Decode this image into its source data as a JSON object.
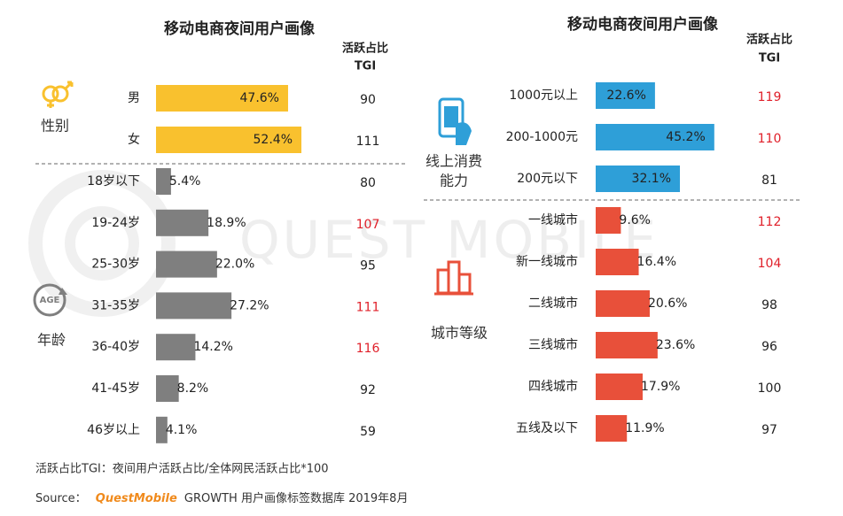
{
  "chart_data": [
    {
      "type": "bar",
      "orientation": "horizontal",
      "title": "移动电商夜间用户画像",
      "tgi_header": [
        "活跃占比",
        "TGI"
      ],
      "groups": [
        {
          "label": [
            "性别"
          ],
          "color": "#f9c12e",
          "categories": [
            "男",
            "女"
          ],
          "values": [
            47.6,
            52.4
          ],
          "value_labels": [
            "47.6%",
            "52.4%"
          ],
          "tgi": [
            90,
            111
          ],
          "tgi_colors": [
            "#222222",
            "#222222"
          ]
        },
        {
          "label": [
            "年龄"
          ],
          "color": "#7f7f7f",
          "categories": [
            "18岁以下",
            "19-24岁",
            "25-30岁",
            "31-35岁",
            "36-40岁",
            "41-45岁",
            "46岁以上"
          ],
          "values": [
            5.4,
            18.9,
            22.0,
            27.2,
            14.2,
            8.2,
            4.1
          ],
          "value_labels": [
            "5.4%",
            "18.9%",
            "22.0%",
            "27.2%",
            "14.2%",
            "8.2%",
            "4.1%"
          ],
          "tgi": [
            80,
            107,
            95,
            111,
            116,
            92,
            59
          ],
          "tgi_colors": [
            "#222222",
            "#e0202a",
            "#222222",
            "#e0202a",
            "#e0202a",
            "#222222",
            "#222222"
          ]
        }
      ]
    },
    {
      "type": "bar",
      "orientation": "horizontal",
      "title": "移动电商夜间用户画像",
      "tgi_header": [
        "活跃占比",
        "TGI"
      ],
      "groups": [
        {
          "label": [
            "线上消费",
            "能力"
          ],
          "color": "#2e9fd8",
          "categories": [
            "1000元以上",
            "200-1000元",
            "200元以下"
          ],
          "values": [
            22.6,
            45.2,
            32.1
          ],
          "value_labels": [
            "22.6%",
            "45.2%",
            "32.1%"
          ],
          "tgi": [
            119,
            110,
            81
          ],
          "tgi_colors": [
            "#e0202a",
            "#e0202a",
            "#222222"
          ]
        },
        {
          "label": [
            "城市等级"
          ],
          "color": "#e8503a",
          "categories": [
            "一线城市",
            "新一线城市",
            "二线城市",
            "三线城市",
            "四线城市",
            "五线及以下"
          ],
          "values": [
            9.6,
            16.4,
            20.6,
            23.6,
            17.9,
            11.9
          ],
          "value_labels": [
            "9.6%",
            "16.4%",
            "20.6%",
            "23.6%",
            "17.9%",
            "11.9%"
          ],
          "tgi": [
            112,
            104,
            98,
            96,
            100,
            97
          ],
          "tgi_colors": [
            "#e0202a",
            "#e0202a",
            "#222222",
            "#222222",
            "#222222",
            "#222222"
          ]
        }
      ]
    }
  ],
  "watermark": "QUEST MOBILE",
  "footnote": "活跃占比TGI：夜间用户活跃占比/全体网民活跃占比*100",
  "source": {
    "prefix": "Source：",
    "brand": "QuestMobile",
    "text": "GROWTH 用户画像标签数据库 2019年8月"
  }
}
